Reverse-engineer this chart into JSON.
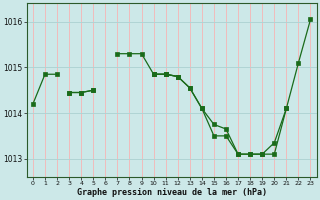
{
  "title": "",
  "xlabel": "Graphe pression niveau de la mer (hPa)",
  "bg_color": "#cce8e8",
  "plot_bg_color": "#cce8e8",
  "grid_color_h": "#b0d4d4",
  "grid_color_v": "#ffaaaa",
  "line_color": "#1a6b1a",
  "marker_color": "#1a6b1a",
  "hours": [
    0,
    1,
    2,
    3,
    4,
    5,
    6,
    7,
    8,
    9,
    10,
    11,
    12,
    13,
    14,
    15,
    16,
    17,
    18,
    19,
    20,
    21,
    22,
    23
  ],
  "series1": [
    1014.2,
    1014.85,
    1014.85,
    null,
    null,
    null,
    null,
    1015.3,
    1015.3,
    1015.3,
    1014.85,
    1014.85,
    1014.8,
    null,
    null,
    null,
    null,
    null,
    null,
    null,
    null,
    null,
    null,
    null
  ],
  "series2": [
    null,
    null,
    null,
    1014.45,
    1014.45,
    1014.5,
    null,
    null,
    null,
    null,
    1014.85,
    1014.85,
    1014.8,
    1014.55,
    1014.1,
    1013.75,
    1013.65,
    1013.1,
    1013.1,
    1013.1,
    1013.35,
    1014.1,
    1015.1,
    1016.05
  ],
  "series3": [
    null,
    null,
    null,
    1014.45,
    1014.45,
    1014.5,
    null,
    null,
    null,
    null,
    1014.85,
    1014.85,
    1014.8,
    1014.55,
    1014.1,
    1013.5,
    1013.5,
    1013.1,
    1013.1,
    1013.1,
    1013.1,
    1014.1,
    null,
    null
  ],
  "ylim": [
    1012.6,
    1016.4
  ],
  "yticks": [
    1013,
    1014,
    1015,
    1016
  ],
  "xticks": [
    0,
    1,
    2,
    3,
    4,
    5,
    6,
    7,
    8,
    9,
    10,
    11,
    12,
    13,
    14,
    15,
    16,
    17,
    18,
    19,
    20,
    21,
    22,
    23
  ],
  "figsize": [
    3.2,
    2.0
  ],
  "dpi": 100
}
